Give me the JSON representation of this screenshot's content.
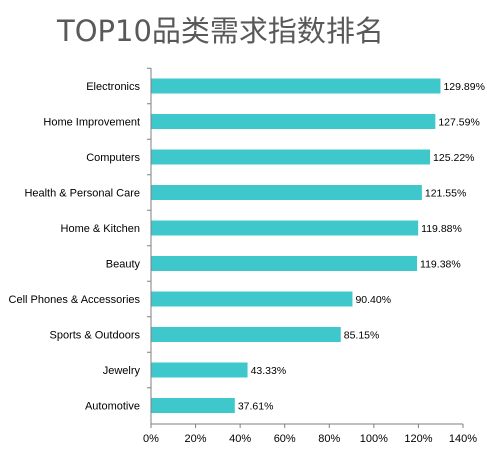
{
  "chart_data": {
    "type": "bar",
    "orientation": "horizontal",
    "title": "TOP10品类需求指数排名",
    "categories": [
      "Electronics",
      "Home Improvement",
      "Computers",
      "Health & Personal Care",
      "Home & Kitchen",
      "Beauty",
      "Cell Phones & Accessories",
      "Sports & Outdoors",
      "Jewelry",
      "Automotive"
    ],
    "values": [
      129.89,
      127.59,
      125.22,
      121.55,
      119.88,
      119.38,
      90.4,
      85.15,
      43.33,
      37.61
    ],
    "value_labels": [
      "129.89%",
      "127.59%",
      "125.22%",
      "121.55%",
      "119.88%",
      "119.38%",
      "90.40%",
      "85.15%",
      "43.33%",
      "37.61%"
    ],
    "x_ticks": [
      0,
      20,
      40,
      60,
      80,
      100,
      120,
      140
    ],
    "x_tick_labels": [
      "0%",
      "20%",
      "40%",
      "60%",
      "80%",
      "100%",
      "120%",
      "140%"
    ],
    "xlim": [
      0,
      140
    ],
    "grid": false,
    "legend": "none",
    "bar_color": "#3FC8CC"
  }
}
